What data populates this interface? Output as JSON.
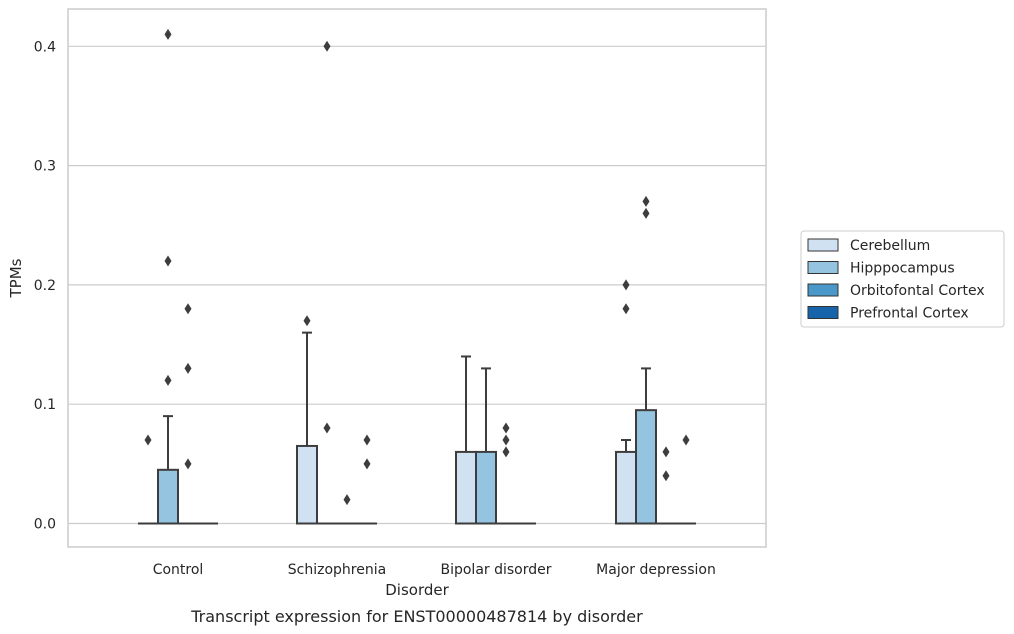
{
  "chart_data": {
    "type": "box",
    "xlabel": "Disorder",
    "ylabel": "TPMs",
    "caption": "Transcript expression for ENST00000487814 by disorder",
    "ylim": [
      -0.02,
      0.43
    ],
    "yticks": [
      0.0,
      0.1,
      0.2,
      0.3,
      0.4
    ],
    "ytick_labels": [
      "0.0",
      "0.1",
      "0.2",
      "0.3",
      "0.4"
    ],
    "grid": "horizontal",
    "legend_position": "right",
    "categories": [
      "Control",
      "Schizophrenia",
      "Bipolar disorder",
      "Major depression"
    ],
    "series": [
      {
        "name": "Cerebellum",
        "color": "#d0e1f2",
        "boxes": [
          {
            "min": 0,
            "q1": 0,
            "median": 0,
            "q3": 0,
            "max": 0,
            "outliers": [
              0.07
            ]
          },
          {
            "min": 0,
            "q1": 0,
            "median": 0,
            "q3": 0.065,
            "max": 0.16,
            "outliers": [
              0.17
            ]
          },
          {
            "min": 0,
            "q1": 0,
            "median": 0,
            "q3": 0.06,
            "max": 0.14,
            "outliers": []
          },
          {
            "min": 0,
            "q1": 0,
            "median": 0,
            "q3": 0.06,
            "max": 0.07,
            "outliers": [
              0.18,
              0.2
            ]
          }
        ]
      },
      {
        "name": "Hipppocampus",
        "color": "#94c4df",
        "boxes": [
          {
            "min": 0,
            "q1": 0,
            "median": 0,
            "q3": 0.045,
            "max": 0.09,
            "outliers": [
              0.12,
              0.22,
              0.41
            ]
          },
          {
            "min": 0,
            "q1": 0,
            "median": 0,
            "q3": 0,
            "max": 0,
            "outliers": [
              0.08,
              0.4
            ]
          },
          {
            "min": 0,
            "q1": 0,
            "median": 0,
            "q3": 0.06,
            "max": 0.13,
            "outliers": []
          },
          {
            "min": 0,
            "q1": 0,
            "median": 0,
            "q3": 0.095,
            "max": 0.13,
            "outliers": [
              0.26,
              0.27
            ]
          }
        ]
      },
      {
        "name": "Orbitofontal Cortex",
        "color": "#4a98c9",
        "boxes": [
          {
            "min": 0,
            "q1": 0,
            "median": 0,
            "q3": 0,
            "max": 0,
            "outliers": [
              0.05,
              0.13,
              0.18
            ]
          },
          {
            "min": 0,
            "q1": 0,
            "median": 0,
            "q3": 0,
            "max": 0,
            "outliers": [
              0.02
            ]
          },
          {
            "min": 0,
            "q1": 0,
            "median": 0,
            "q3": 0,
            "max": 0,
            "outliers": [
              0.06,
              0.07,
              0.08
            ]
          },
          {
            "min": 0,
            "q1": 0,
            "median": 0,
            "q3": 0,
            "max": 0,
            "outliers": [
              0.04,
              0.06
            ]
          }
        ]
      },
      {
        "name": "Prefrontal Cortex",
        "color": "#1764ab",
        "boxes": [
          {
            "min": 0,
            "q1": 0,
            "median": 0,
            "q3": 0,
            "max": 0,
            "outliers": []
          },
          {
            "min": 0,
            "q1": 0,
            "median": 0,
            "q3": 0,
            "max": 0,
            "outliers": [
              0.05,
              0.07
            ]
          },
          {
            "min": 0,
            "q1": 0,
            "median": 0,
            "q3": 0,
            "max": 0,
            "outliers": []
          },
          {
            "min": 0,
            "q1": 0,
            "median": 0,
            "q3": 0,
            "max": 0,
            "outliers": [
              0.07
            ]
          }
        ]
      }
    ]
  }
}
